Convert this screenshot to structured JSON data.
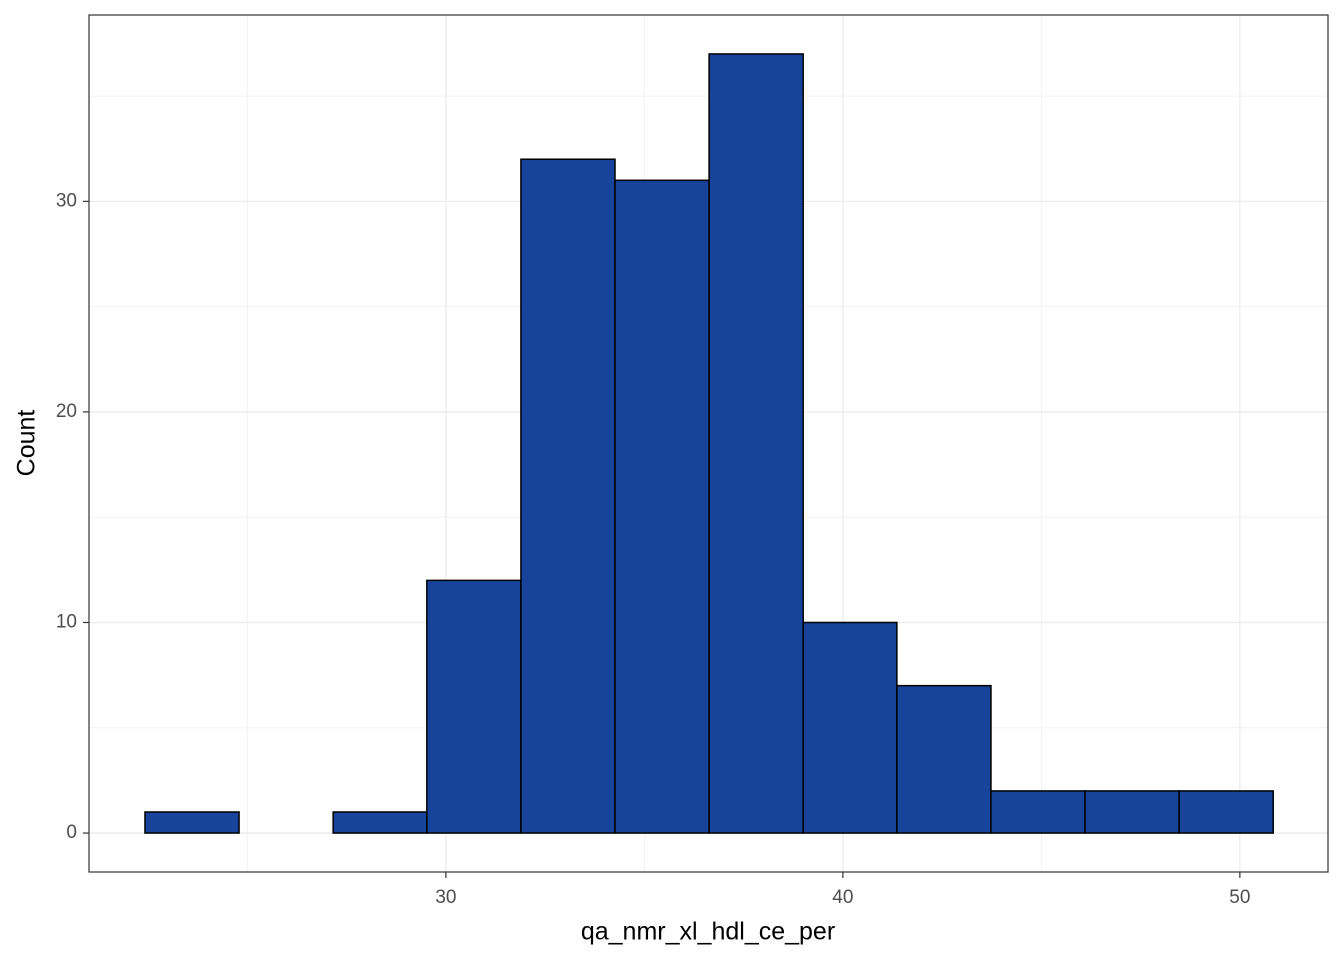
{
  "chart_data": {
    "type": "histogram",
    "x_label": "qa_nmr_xl_hdl_ce_per",
    "y_label": "Count",
    "bins": [
      22.42,
      24.79,
      27.16,
      29.52,
      31.89,
      34.26,
      36.63,
      39.0,
      41.36,
      43.73,
      46.1,
      48.47,
      50.84
    ],
    "values": [
      1,
      0,
      1,
      12,
      32,
      31,
      37,
      10,
      7,
      2,
      2,
      2
    ],
    "color": "#17449a",
    "edge_color": "#000000",
    "xlim": [
      21.01,
      52.22
    ],
    "xticks": [
      30,
      40,
      50
    ],
    "ylim": [
      -1.85,
      38.85
    ],
    "yticks": [
      0,
      10,
      20,
      30
    ],
    "grid": true
  }
}
